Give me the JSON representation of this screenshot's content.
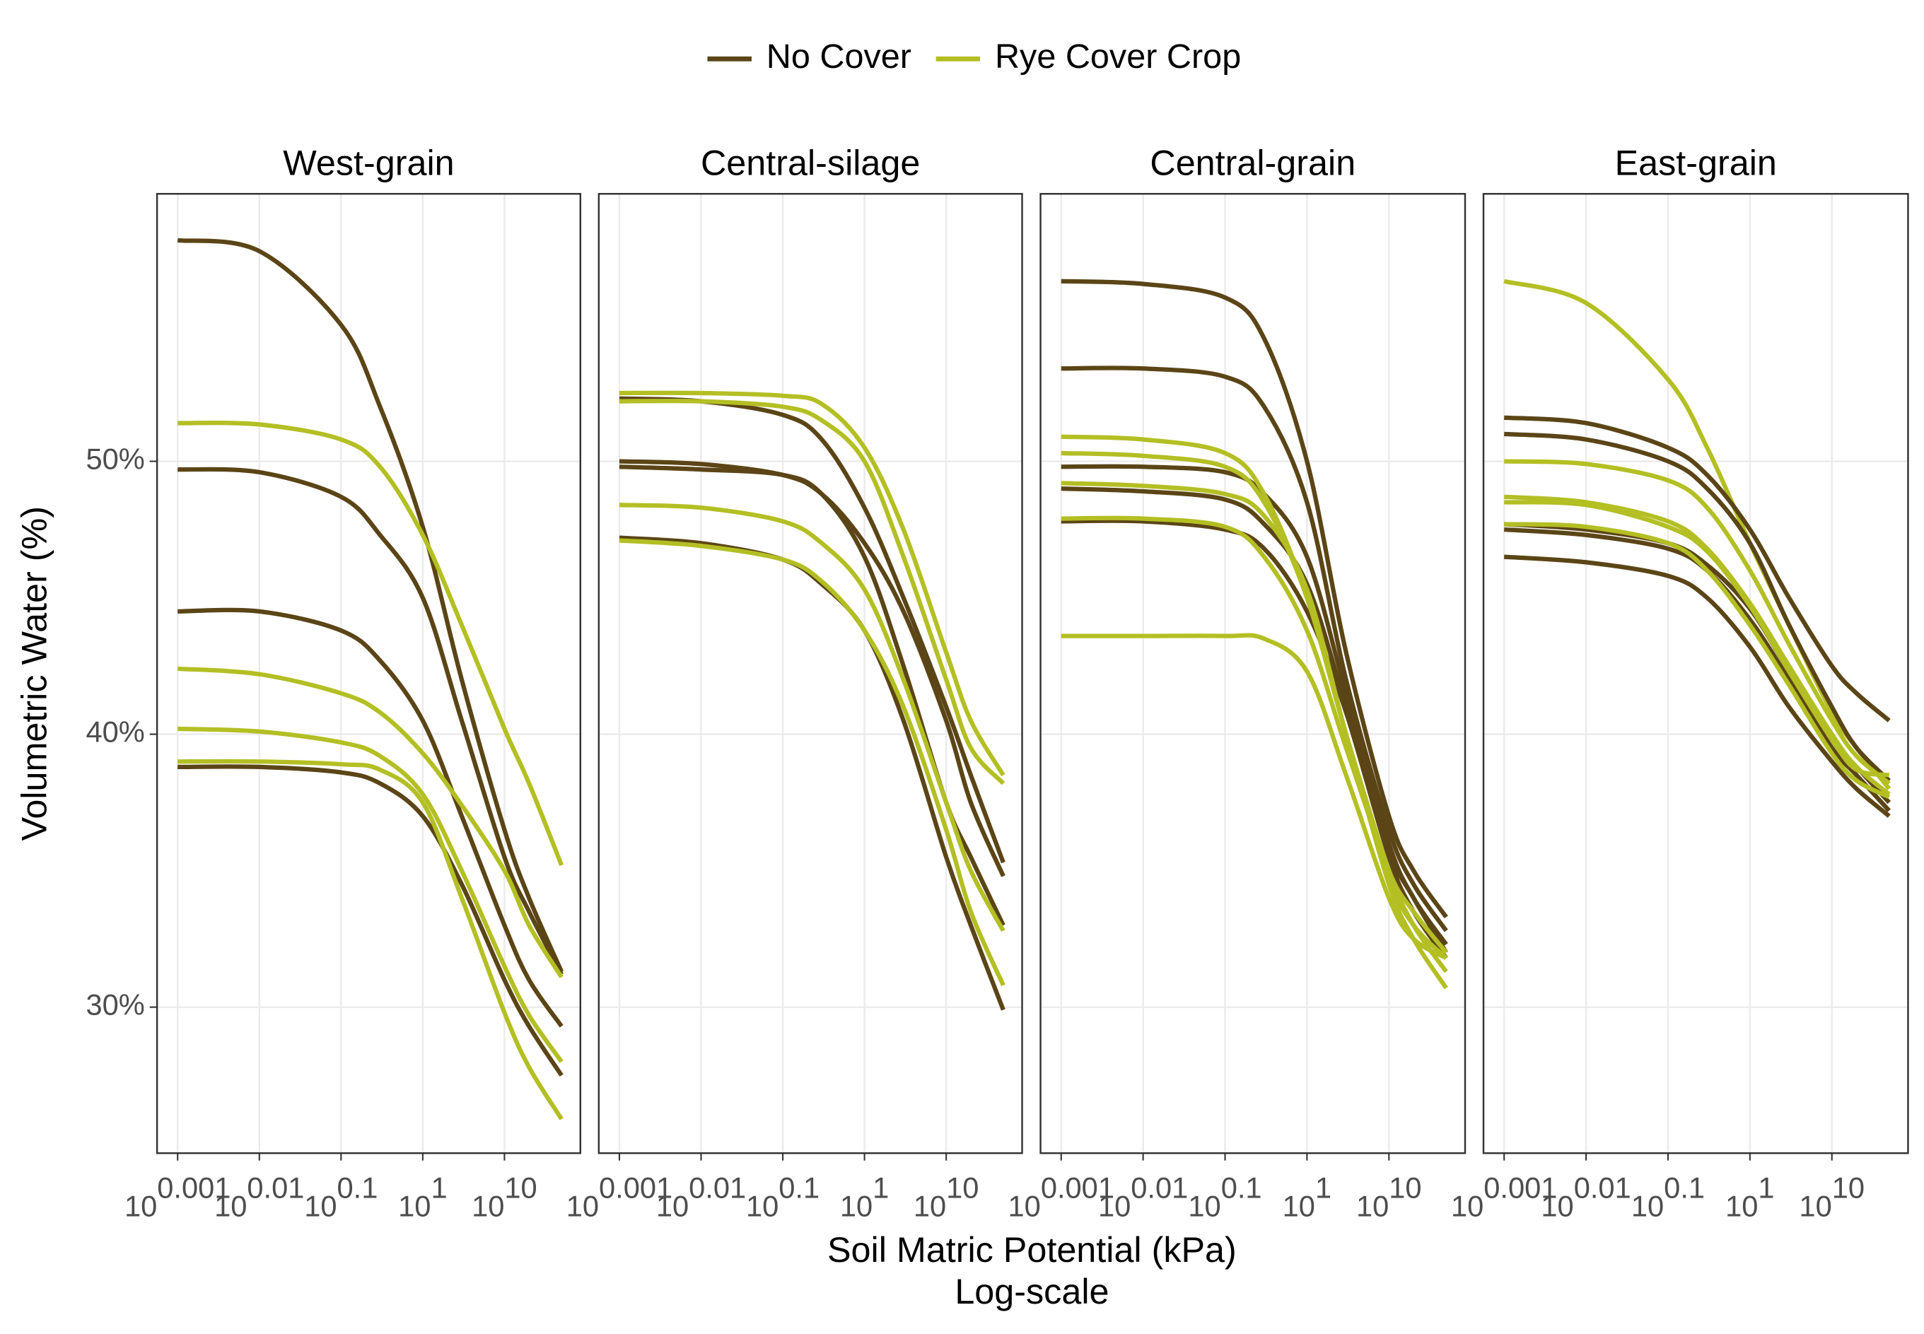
{
  "chart_data": {
    "type": "line",
    "log_x": true,
    "grid": true,
    "legend_position": "top",
    "legend": [
      {
        "name": "No Cover",
        "color": "#5b4516"
      },
      {
        "name": "Rye Cover Crop",
        "color": "#b3bf23"
      }
    ],
    "x_label": [
      "Soil Matric Potential (kPa)",
      "Log-scale"
    ],
    "y_label": "Volumetric Water (%)",
    "x": [
      0.001,
      0.01,
      0.1,
      0.3,
      1,
      3,
      10,
      20,
      50
    ],
    "xlim": [
      0.00056,
      85
    ],
    "xticks": [
      {
        "value": 0.001,
        "label": "10",
        "exponent": "0.001"
      },
      {
        "value": 0.01,
        "label": "10",
        "exponent": "0.01"
      },
      {
        "value": 0.1,
        "label": "10",
        "exponent": "0.1"
      },
      {
        "value": 1,
        "label": "10",
        "exponent": "1"
      },
      {
        "value": 10,
        "label": "10",
        "exponent": "10"
      }
    ],
    "ylim": [
      24.65,
      59.8
    ],
    "yticks": [
      {
        "value": 30,
        "label": "30%"
      },
      {
        "value": 40,
        "label": "40%"
      },
      {
        "value": 50,
        "label": "50%"
      }
    ],
    "panels": [
      {
        "title": "West-grain",
        "series": [
          {
            "group": 0,
            "values": [
              58.1,
              57.7,
              55.0,
              52.0,
              47.6,
              42.0,
              36.5,
              34.0,
              31.3
            ]
          },
          {
            "group": 0,
            "values": [
              49.7,
              49.6,
              48.7,
              47.3,
              45.0,
              40.5,
              35.5,
              33.5,
              31.2
            ]
          },
          {
            "group": 0,
            "values": [
              44.5,
              44.5,
              43.8,
              42.7,
              40.5,
              37.0,
              33.0,
              31.0,
              29.3
            ]
          },
          {
            "group": 0,
            "values": [
              38.8,
              38.8,
              38.6,
              38.2,
              37.0,
              34.5,
              31.0,
              29.3,
              27.5
            ]
          },
          {
            "group": 1,
            "values": [
              51.4,
              51.35,
              50.8,
              49.8,
              47.3,
              44.0,
              40.2,
              38.2,
              35.2
            ]
          },
          {
            "group": 1,
            "values": [
              42.4,
              42.2,
              41.5,
              40.8,
              39.3,
              37.4,
              35.0,
              33.0,
              31.1
            ]
          },
          {
            "group": 1,
            "values": [
              40.2,
              40.1,
              39.7,
              39.2,
              37.8,
              35.0,
              31.5,
              29.7,
              28.0
            ]
          },
          {
            "group": 1,
            "values": [
              39.0,
              39.0,
              38.9,
              38.7,
              37.5,
              34.0,
              29.8,
              27.8,
              25.9
            ]
          }
        ]
      },
      {
        "title": "Central-silage",
        "series": [
          {
            "group": 0,
            "values": [
              52.3,
              52.2,
              51.7,
              50.8,
              48.3,
              45.0,
              41.0,
              38.5,
              35.3
            ]
          },
          {
            "group": 0,
            "values": [
              50.0,
              49.9,
              49.5,
              48.8,
              47.0,
              44.5,
              40.5,
              37.5,
              34.8
            ]
          },
          {
            "group": 0,
            "values": [
              49.8,
              49.7,
              49.5,
              48.8,
              46.5,
              42.5,
              37.5,
              35.5,
              33.0
            ]
          },
          {
            "group": 0,
            "values": [
              47.2,
              47.0,
              46.4,
              45.5,
              43.8,
              40.5,
              35.5,
              33.0,
              29.9
            ]
          },
          {
            "group": 1,
            "values": [
              52.5,
              52.5,
              52.4,
              52.1,
              50.5,
              47.5,
              43.0,
              40.5,
              38.5
            ]
          },
          {
            "group": 1,
            "values": [
              52.2,
              52.2,
              52.0,
              51.5,
              50.0,
              46.5,
              42.0,
              39.5,
              38.2
            ]
          },
          {
            "group": 1,
            "values": [
              48.4,
              48.3,
              47.8,
              47.0,
              45.3,
              42.0,
              37.5,
              35.0,
              32.8
            ]
          },
          {
            "group": 1,
            "values": [
              47.1,
              46.9,
              46.4,
              45.6,
              43.8,
              41.0,
              36.5,
              33.5,
              30.8
            ]
          }
        ]
      },
      {
        "title": "Central-grain",
        "series": [
          {
            "group": 0,
            "values": [
              56.6,
              56.5,
              56.0,
              54.5,
              50.0,
              43.0,
              37.0,
              35.0,
              33.3
            ]
          },
          {
            "group": 0,
            "values": [
              53.4,
              53.4,
              53.1,
              52.0,
              48.5,
              42.0,
              36.5,
              34.5,
              32.8
            ]
          },
          {
            "group": 0,
            "values": [
              49.8,
              49.8,
              49.6,
              48.8,
              46.5,
              41.5,
              36.0,
              34.0,
              32.3
            ]
          },
          {
            "group": 0,
            "values": [
              49.0,
              48.9,
              48.6,
              47.7,
              45.5,
              41.0,
              35.8,
              34.0,
              32.0
            ]
          },
          {
            "group": 0,
            "values": [
              47.8,
              47.8,
              47.5,
              46.8,
              44.5,
              40.8,
              35.5,
              33.5,
              31.8
            ]
          },
          {
            "group": 1,
            "values": [
              50.9,
              50.8,
              50.3,
              48.8,
              45.0,
              40.0,
              35.0,
              33.0,
              31.3
            ]
          },
          {
            "group": 1,
            "values": [
              50.3,
              50.2,
              49.8,
              48.5,
              45.0,
              40.0,
              34.5,
              32.5,
              30.7
            ]
          },
          {
            "group": 1,
            "values": [
              49.2,
              49.1,
              48.8,
              48.0,
              45.3,
              40.0,
              34.8,
              33.0,
              31.8
            ]
          },
          {
            "group": 1,
            "values": [
              47.9,
              47.9,
              47.6,
              46.5,
              43.8,
              39.5,
              35.0,
              33.5,
              32.0
            ]
          },
          {
            "group": 1,
            "values": [
              43.6,
              43.6,
              43.6,
              43.5,
              42.3,
              38.5,
              34.0,
              32.5,
              31.8
            ]
          }
        ]
      },
      {
        "title": "East-grain",
        "series": [
          {
            "group": 1,
            "values": [
              56.6,
              55.8,
              53.0,
              50.5,
              47.0,
              44.0,
              40.8,
              39.5,
              38.0
            ]
          },
          {
            "group": 0,
            "values": [
              51.6,
              51.4,
              50.5,
              49.5,
              47.5,
              45.0,
              42.5,
              41.5,
              40.5
            ]
          },
          {
            "group": 0,
            "values": [
              51.0,
              50.8,
              50.0,
              49.0,
              47.0,
              44.0,
              41.0,
              39.5,
              38.3
            ]
          },
          {
            "group": 0,
            "values": [
              47.7,
              47.5,
              47.0,
              46.2,
              44.6,
              42.3,
              39.8,
              38.8,
              37.5
            ]
          },
          {
            "group": 0,
            "values": [
              47.5,
              47.3,
              46.8,
              46.0,
              44.2,
              42.0,
              39.5,
              38.5,
              37.2
            ]
          },
          {
            "group": 0,
            "values": [
              46.5,
              46.3,
              45.8,
              45.0,
              43.2,
              41.0,
              39.0,
              38.0,
              37.0
            ]
          },
          {
            "group": 1,
            "values": [
              50.0,
              49.9,
              49.3,
              48.3,
              46.0,
              43.3,
              40.5,
              39.2,
              38.2
            ]
          },
          {
            "group": 1,
            "values": [
              48.7,
              48.5,
              47.8,
              46.8,
              44.8,
              42.5,
              40.0,
              38.8,
              37.8
            ]
          },
          {
            "group": 1,
            "values": [
              48.5,
              48.4,
              47.6,
              46.7,
              44.7,
              42.3,
              39.8,
              38.7,
              38.5
            ]
          },
          {
            "group": 1,
            "values": [
              47.7,
              47.6,
              47.0,
              46.0,
              44.0,
              41.8,
              39.3,
              38.3,
              37.7
            ]
          }
        ]
      }
    ]
  }
}
